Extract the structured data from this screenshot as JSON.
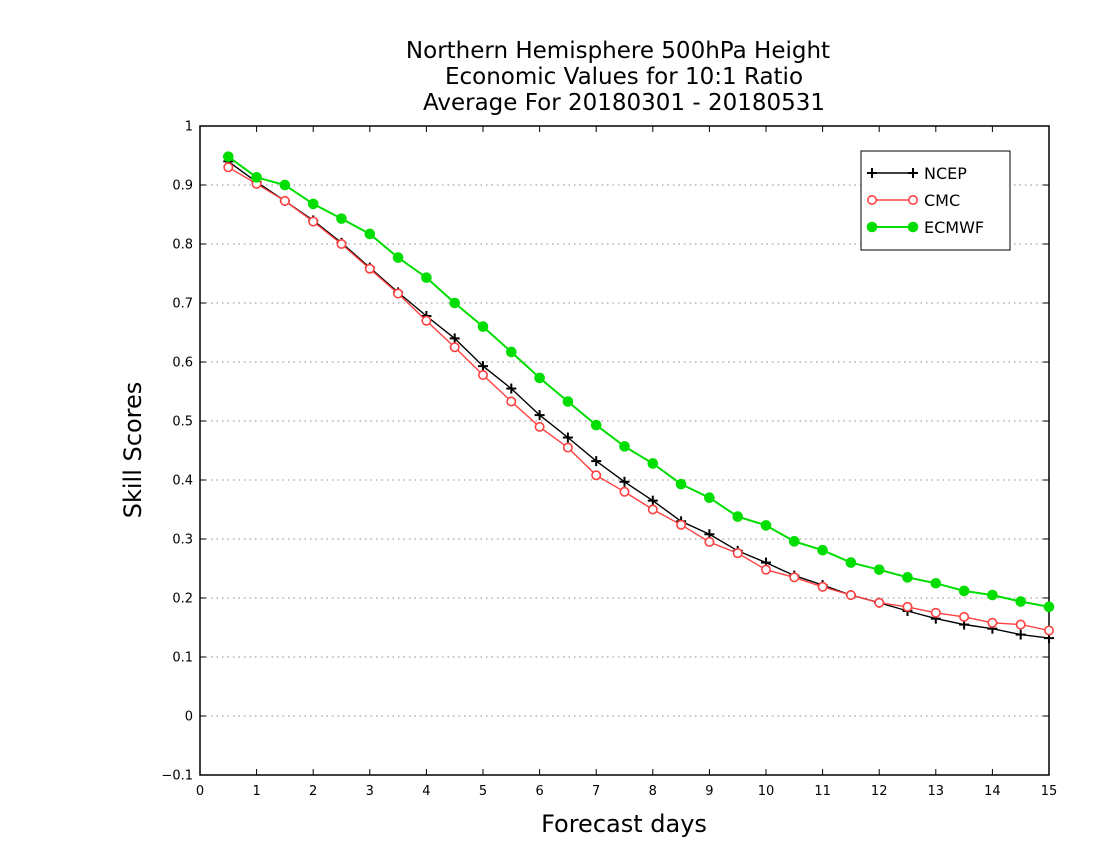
{
  "chart_data": {
    "type": "line",
    "title": [
      "Northern Hemisphere 500hPa Height",
      "Economic Values for 10:1 Ratio",
      "Average For 20180301 - 20180531"
    ],
    "xlabel": "Forecast days",
    "ylabel": "Skill Scores",
    "xlim": [
      0,
      15
    ],
    "ylim": [
      -0.1,
      1
    ],
    "x_ticks": [
      0,
      1,
      2,
      3,
      4,
      5,
      6,
      7,
      8,
      9,
      10,
      11,
      12,
      13,
      14,
      15
    ],
    "y_ticks": [
      -0.1,
      0,
      0.1,
      0.2,
      0.3,
      0.4,
      0.5,
      0.6,
      0.7,
      0.8,
      0.9,
      1
    ],
    "x_tick_labels": [
      "0",
      "1",
      "2",
      "3",
      "4",
      "5",
      "6",
      "7",
      "8",
      "9",
      "10",
      "11",
      "12",
      "13",
      "14",
      "15"
    ],
    "y_tick_labels": [
      "−0.1",
      "0",
      "0.1",
      "0.2",
      "0.3",
      "0.4",
      "0.5",
      "0.6",
      "0.7",
      "0.8",
      "0.9",
      "1"
    ],
    "grid": "horizontal dotted",
    "legend_position": "top-right",
    "x": [
      0.5,
      1,
      1.5,
      2,
      2.5,
      3,
      3.5,
      4,
      4.5,
      5,
      5.5,
      6,
      6.5,
      7,
      7.5,
      8,
      8.5,
      9,
      9.5,
      10,
      10.5,
      11,
      11.5,
      12,
      12.5,
      13,
      13.5,
      14,
      14.5,
      15
    ],
    "series": [
      {
        "name": "NCEP",
        "color": "#000000",
        "marker": "plus",
        "values": [
          0.94,
          0.905,
          0.873,
          0.84,
          0.802,
          0.76,
          0.718,
          0.678,
          0.64,
          0.593,
          0.555,
          0.51,
          0.472,
          0.432,
          0.397,
          0.365,
          0.33,
          0.308,
          0.28,
          0.26,
          0.238,
          0.222,
          0.205,
          0.192,
          0.178,
          0.165,
          0.155,
          0.148,
          0.138,
          0.132
        ]
      },
      {
        "name": "CMC",
        "color": "#ff4040",
        "marker": "open-circle",
        "values": [
          0.93,
          0.902,
          0.873,
          0.838,
          0.8,
          0.758,
          0.716,
          0.67,
          0.625,
          0.578,
          0.533,
          0.49,
          0.455,
          0.408,
          0.38,
          0.35,
          0.324,
          0.295,
          0.276,
          0.248,
          0.235,
          0.219,
          0.205,
          0.192,
          0.185,
          0.175,
          0.168,
          0.158,
          0.155,
          0.145
        ]
      },
      {
        "name": "ECMWF",
        "color": "#00dd00",
        "marker": "filled-circle",
        "values": [
          0.948,
          0.913,
          0.9,
          0.868,
          0.843,
          0.817,
          0.777,
          0.743,
          0.7,
          0.66,
          0.617,
          0.573,
          0.533,
          0.493,
          0.457,
          0.428,
          0.393,
          0.37,
          0.338,
          0.323,
          0.296,
          0.281,
          0.26,
          0.248,
          0.235,
          0.225,
          0.212,
          0.205,
          0.194,
          0.185
        ]
      }
    ]
  }
}
